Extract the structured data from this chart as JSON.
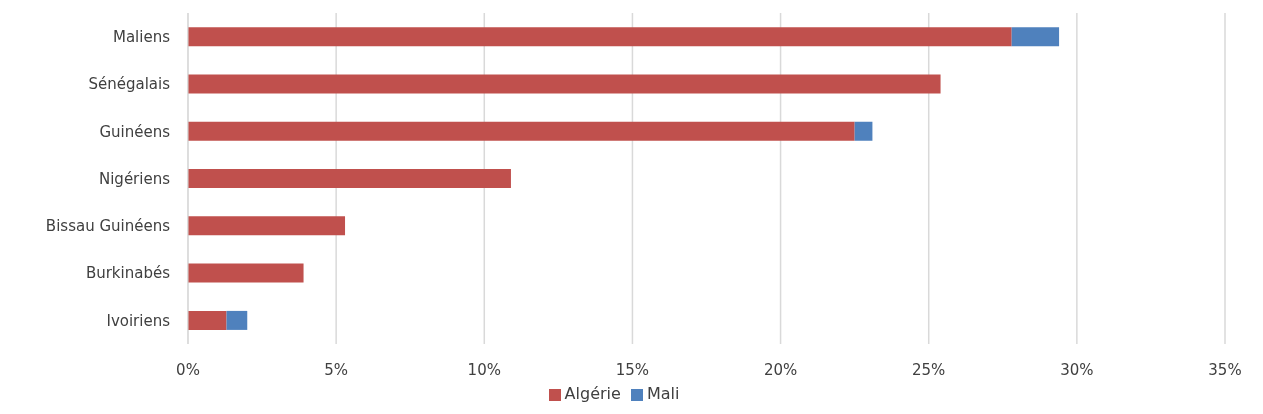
{
  "chart_data": {
    "type": "bar",
    "orientation": "horizontal",
    "stacked": true,
    "categories": [
      "Maliens",
      "Sénégalais",
      "Guinéens",
      "Nigériens",
      "Bissau Guinéens",
      "Burkinabés",
      "Ivoiriens"
    ],
    "series": [
      {
        "name": "Algérie",
        "color": "#c0504d",
        "values": [
          27.8,
          25.4,
          22.5,
          10.9,
          5.3,
          3.9,
          1.3
        ]
      },
      {
        "name": "Mali",
        "color": "#4f81bd",
        "values": [
          1.6,
          null,
          0.6,
          null,
          null,
          null,
          0.7
        ]
      }
    ],
    "xlim": [
      0,
      35
    ],
    "xticks": [
      {
        "value": 0,
        "label": "0%"
      },
      {
        "value": 5,
        "label": "5%"
      },
      {
        "value": 10,
        "label": "10%"
      },
      {
        "value": 15,
        "label": "15%"
      },
      {
        "value": 20,
        "label": "20%"
      },
      {
        "value": 25,
        "label": "25%"
      },
      {
        "value": 30,
        "label": "30%"
      },
      {
        "value": 35,
        "label": "35%"
      }
    ],
    "grid": "x",
    "legend": "bottom"
  }
}
